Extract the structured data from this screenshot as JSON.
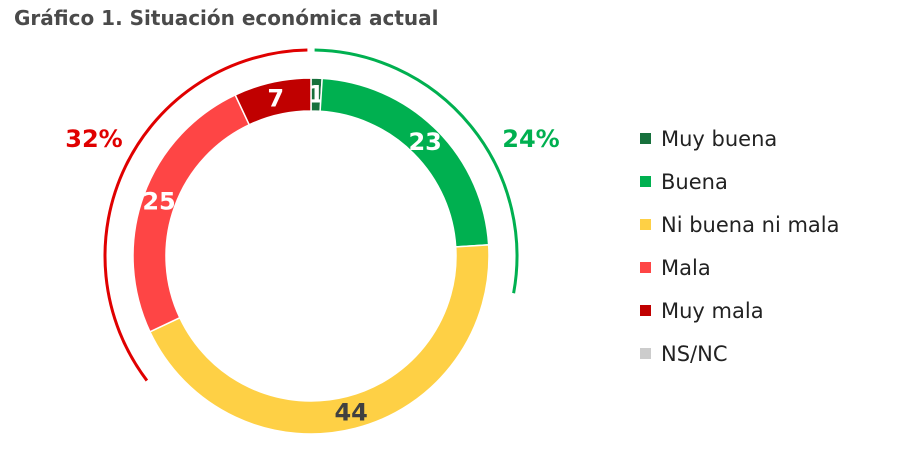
{
  "chart_data": {
    "type": "pie",
    "style": "donut",
    "title": "Gráfico 1. Situación económica actual",
    "categories": [
      "Muy buena",
      "Buena",
      "Ni buena ni mala",
      "Mala",
      "Muy mala",
      "NS/NC"
    ],
    "values": [
      1,
      23,
      44,
      25,
      7,
      0
    ],
    "colors": [
      "#17703c",
      "#00b050",
      "#fed045",
      "#fe4545",
      "#c00000",
      "#cccccc"
    ],
    "data_labels": [
      "1",
      "23",
      "44",
      "25",
      "7",
      ""
    ],
    "label_colors": [
      "#ffffff",
      "#ffffff",
      "#404040",
      "#ffffff",
      "#ffffff",
      "#ffffff"
    ],
    "group_labels": [
      {
        "text": "24%",
        "color": "#00b050",
        "covers": [
          "Muy buena",
          "Buena"
        ]
      },
      {
        "text": "32%",
        "color": "#e00000",
        "covers": [
          "Mala",
          "Muy mala"
        ]
      }
    ],
    "legend_position": "right"
  }
}
